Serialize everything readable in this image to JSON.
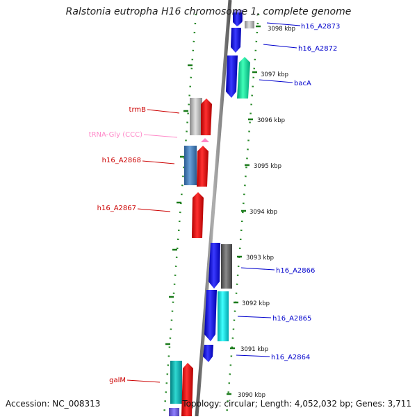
{
  "header": {
    "title": "Ralstonia eutropha H16 chromosome 1, complete genome"
  },
  "footer": {
    "accession": "Accession: NC_008313",
    "summary": "Topology: circular; Length: 4,052,032 bp; Genes: 3,711"
  },
  "ticks": [
    "3098 kbp",
    "3097 kbp",
    "3096 kbp",
    "3095 kbp",
    "3094 kbp",
    "3093 kbp",
    "3092 kbp",
    "3091 kbp",
    "3090 kbp"
  ],
  "genes_right": [
    "h16_A2873",
    "h16_A2872",
    "bacA",
    "h16_A2866",
    "h16_A2865",
    "h16_A2864"
  ],
  "genes_left": [
    "trmB",
    "tRNA-Gly (CCC)",
    "h16_A2868",
    "h16_A2867",
    "galM"
  ],
  "colors": {
    "forward_cds": "#1010dd",
    "reverse_cds": "#e00000",
    "rna": "#ff88c8",
    "backbone": "#808080",
    "dots": "#2a8a2a",
    "label_blue": "#0000cc",
    "label_red": "#cc0000"
  }
}
